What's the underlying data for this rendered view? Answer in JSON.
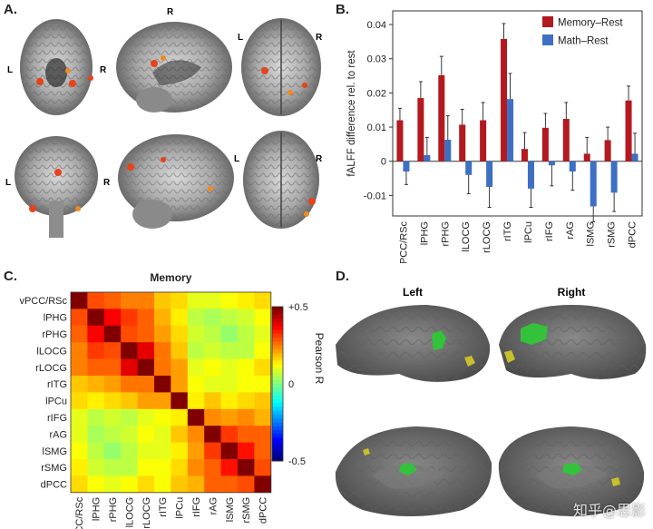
{
  "panels": {
    "a": "A.",
    "b": "B.",
    "c": "C.",
    "d": "D."
  },
  "panel_a": {
    "label_L": "L",
    "label_R": "R"
  },
  "panel_d": {
    "left": "Left",
    "right": "Right"
  },
  "watermark": "知乎@思影",
  "colors": {
    "memory": "#b3191e",
    "math": "#3d6fc4",
    "d_green": "#33c33a",
    "d_yellow": "#c7c02a"
  },
  "chart_data": [
    {
      "type": "bar",
      "title": "",
      "ylabel": "fALFF difference rel. to rest",
      "xlabel": "",
      "ylim": [
        -0.016,
        0.044
      ],
      "yticks": [
        -0.01,
        0,
        0.01,
        0.02,
        0.03,
        0.04
      ],
      "ytick_labels": [
        "-0.01",
        "0",
        "0.01",
        "0.02",
        "0.03",
        "0.04"
      ],
      "legend_position": "top-right",
      "categories": [
        "vPCC/RSc",
        "lPHG",
        "rPHG",
        "lLOCG",
        "rLOCG",
        "rITG",
        "lPCu",
        "rIFG",
        "rAG",
        "lSMG",
        "rSMG",
        "dPCC"
      ],
      "series": [
        {
          "name": "Memory–Rest",
          "color": "#b3191e",
          "values": [
            0.012,
            0.0185,
            0.0252,
            0.0107,
            0.012,
            0.0358,
            0.0036,
            0.0098,
            0.0124,
            0.0022,
            0.0062,
            0.0178
          ],
          "errors": [
            0.0035,
            0.0048,
            0.0055,
            0.0045,
            0.0052,
            0.0045,
            0.0048,
            0.0042,
            0.0048,
            0.0048,
            0.0038,
            0.0042
          ]
        },
        {
          "name": "Math–Rest",
          "color": "#3d6fc4",
          "values": [
            -0.003,
            0.0018,
            0.0063,
            -0.004,
            -0.0075,
            0.0182,
            -0.008,
            -0.0012,
            -0.003,
            -0.0132,
            -0.0092,
            0.0022
          ],
          "errors": [
            0.0038,
            0.0052,
            0.007,
            0.0055,
            0.006,
            0.0075,
            0.0055,
            0.006,
            0.0055,
            0.0045,
            0.0055,
            0.006
          ]
        }
      ]
    },
    {
      "type": "heatmap",
      "title": "Memory",
      "labels": [
        "vPCC/RSc",
        "lPHG",
        "rPHG",
        "lLOCG",
        "rLOCG",
        "rITG",
        "lPCu",
        "rIFG",
        "rAG",
        "lSMG",
        "rSMG",
        "dPCC"
      ],
      "colorbar": {
        "label": "Pearson R",
        "min": -0.5,
        "max": 0.5,
        "tick_labels": [
          "+0.5",
          "0",
          "-0.5"
        ]
      },
      "values": [
        [
          0.55,
          0.3,
          0.28,
          0.25,
          0.25,
          0.18,
          0.16,
          0.1,
          0.1,
          0.12,
          0.14,
          0.16
        ],
        [
          0.3,
          0.55,
          0.38,
          0.32,
          0.28,
          0.2,
          0.14,
          0.06,
          0.04,
          0.06,
          0.08,
          0.12
        ],
        [
          0.28,
          0.38,
          0.55,
          0.3,
          0.28,
          0.22,
          0.16,
          0.08,
          0.06,
          0.02,
          0.06,
          0.1
        ],
        [
          0.25,
          0.32,
          0.3,
          0.55,
          0.4,
          0.26,
          0.18,
          0.06,
          0.08,
          0.06,
          0.06,
          0.12
        ],
        [
          0.25,
          0.28,
          0.28,
          0.4,
          0.55,
          0.26,
          0.22,
          0.1,
          0.12,
          0.1,
          0.12,
          0.16
        ],
        [
          0.18,
          0.2,
          0.22,
          0.26,
          0.26,
          0.55,
          0.22,
          0.12,
          0.1,
          0.1,
          0.12,
          0.12
        ],
        [
          0.16,
          0.14,
          0.16,
          0.18,
          0.22,
          0.22,
          0.55,
          0.14,
          0.18,
          0.14,
          0.16,
          0.18
        ],
        [
          0.1,
          0.06,
          0.08,
          0.06,
          0.1,
          0.12,
          0.14,
          0.55,
          0.24,
          0.22,
          0.24,
          0.2
        ],
        [
          0.1,
          0.04,
          0.06,
          0.08,
          0.12,
          0.1,
          0.18,
          0.24,
          0.55,
          0.32,
          0.28,
          0.28
        ],
        [
          0.12,
          0.06,
          0.02,
          0.06,
          0.1,
          0.1,
          0.14,
          0.22,
          0.32,
          0.55,
          0.36,
          0.28
        ],
        [
          0.14,
          0.08,
          0.06,
          0.06,
          0.12,
          0.12,
          0.16,
          0.24,
          0.28,
          0.36,
          0.55,
          0.3
        ],
        [
          0.16,
          0.12,
          0.1,
          0.12,
          0.16,
          0.12,
          0.18,
          0.2,
          0.28,
          0.28,
          0.3,
          0.55
        ]
      ]
    }
  ]
}
